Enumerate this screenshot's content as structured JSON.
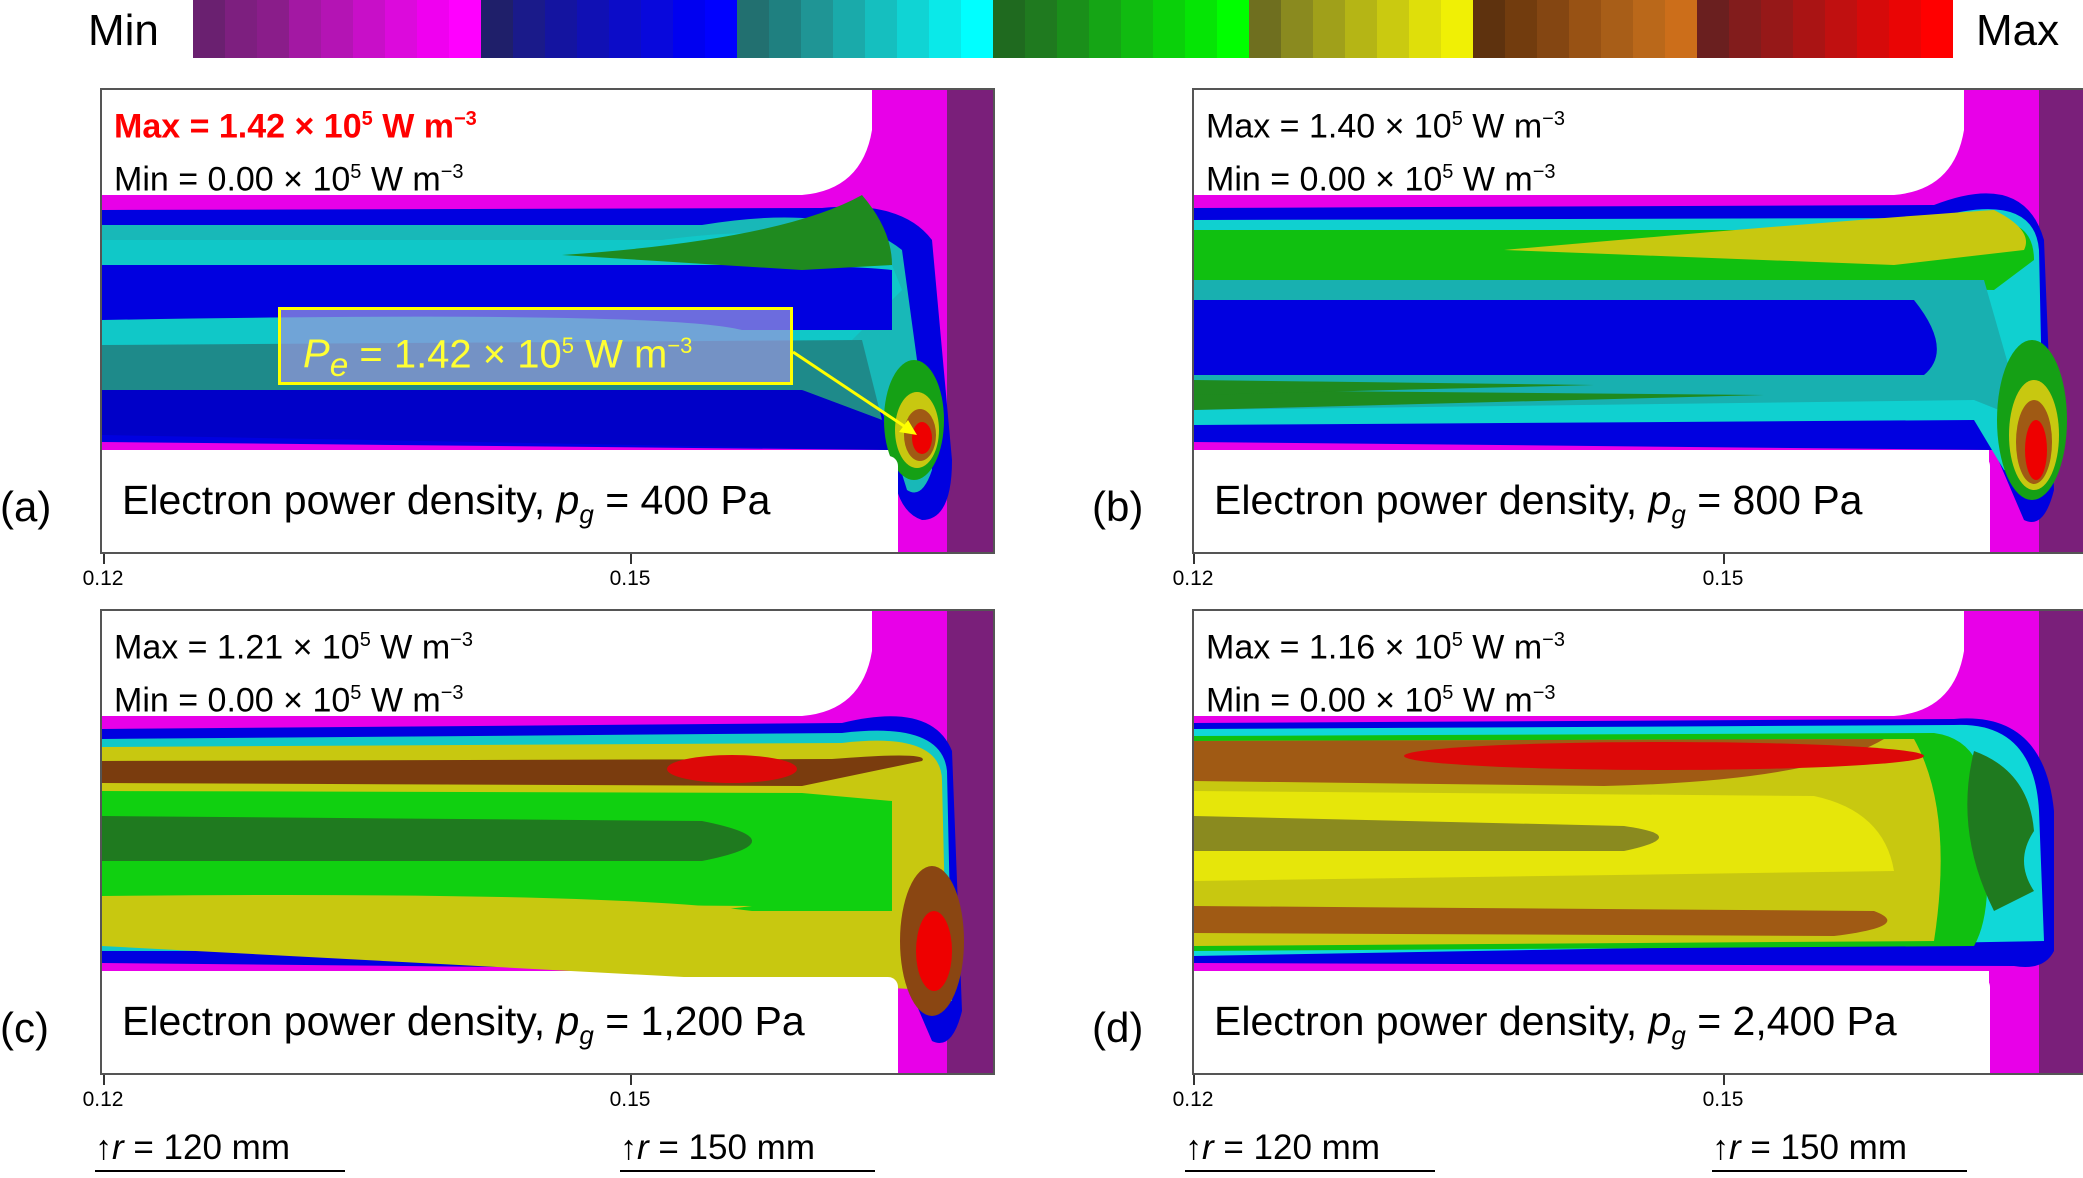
{
  "colorbar": {
    "min_label": "Min",
    "max_label": "Max",
    "colors": [
      "#6a2070",
      "#7d1f7f",
      "#8a1d8a",
      "#a318a3",
      "#b414b4",
      "#c80fc8",
      "#dc0adc",
      "#f000f0",
      "#ff00ff",
      "#1f1f6a",
      "#1a1a8a",
      "#1414a0",
      "#1010b4",
      "#0c0cc8",
      "#0808dc",
      "#0000f0",
      "#0000ff",
      "#227070",
      "#1f8080",
      "#1f9595",
      "#1aaaaa",
      "#15bfbf",
      "#10d4d4",
      "#0ae9e9",
      "#00ffff",
      "#1f6a1f",
      "#1f7a1f",
      "#1a8f1a",
      "#15a515",
      "#10bb10",
      "#0ad00a",
      "#05e505",
      "#00ff00",
      "#6f6f1f",
      "#8a8a1f",
      "#a0a01a",
      "#b5b515",
      "#caca10",
      "#dfdf0a",
      "#f0f005",
      "#5e320e",
      "#723c0e",
      "#844612",
      "#985214",
      "#a85e18",
      "#ba681a",
      "#cc6e1a",
      "#6a1f1f",
      "#821c1c",
      "#961818",
      "#aa1414",
      "#c01010",
      "#d60a0a",
      "#ea0505",
      "#ff0000"
    ]
  },
  "panels": [
    {
      "id": "a",
      "label": "(a)",
      "max_text": "Max = 1.42 × 10",
      "max_exp": "5",
      "max_unit": " W m",
      "max_unit_exp": "−3",
      "min_text": "Min = 0.00 × 10",
      "min_exp": "5",
      "min_unit": " W m",
      "min_unit_exp": "−3",
      "caption_prefix": "Electron power density, ",
      "caption_var": "p",
      "caption_sub": "g",
      "caption_value": " = 400 Pa",
      "annotation": {
        "var": "P",
        "sub": "e",
        "text": " = 1.42 × 10",
        "exp": "5",
        "unit": " W m",
        "unit_exp": "−3"
      },
      "ticks": [
        "0.12",
        "0.15"
      ]
    },
    {
      "id": "b",
      "label": "(b)",
      "max_text": "Max = 1.40 × 10",
      "max_exp": "5",
      "max_unit": " W m",
      "max_unit_exp": "−3",
      "min_text": "Min = 0.00 × 10",
      "min_exp": "5",
      "min_unit": " W m",
      "min_unit_exp": "−3",
      "caption_prefix": "Electron power density, ",
      "caption_var": "p",
      "caption_sub": "g",
      "caption_value": " = 800 Pa",
      "ticks": [
        "0.12",
        "0.15"
      ]
    },
    {
      "id": "c",
      "label": "(c)",
      "max_text": "Max = 1.21 × 10",
      "max_exp": "5",
      "max_unit": " W m",
      "max_unit_exp": "−3",
      "min_text": "Min = 0.00 × 10",
      "min_exp": "5",
      "min_unit": " W m",
      "min_unit_exp": "−3",
      "caption_prefix": "Electron power density, ",
      "caption_var": "p",
      "caption_sub": "g",
      "caption_value": " = 1,200 Pa",
      "ticks": [
        "0.12",
        "0.15"
      ]
    },
    {
      "id": "d",
      "label": "(d)",
      "max_text": "Max = 1.16 × 10",
      "max_exp": "5",
      "max_unit": " W m",
      "max_unit_exp": "−3",
      "min_text": "Min = 0.00 × 10",
      "min_exp": "5",
      "min_unit": " W m",
      "min_unit_exp": "−3",
      "caption_prefix": "Electron power density, ",
      "caption_var": "p",
      "caption_sub": "g",
      "caption_value": " = 2,400 Pa",
      "ticks": [
        "0.12",
        "0.15"
      ]
    }
  ],
  "radius_markers": [
    {
      "var": "r",
      "text": " = 120 mm"
    },
    {
      "var": "r",
      "text": " = 150 mm"
    }
  ]
}
